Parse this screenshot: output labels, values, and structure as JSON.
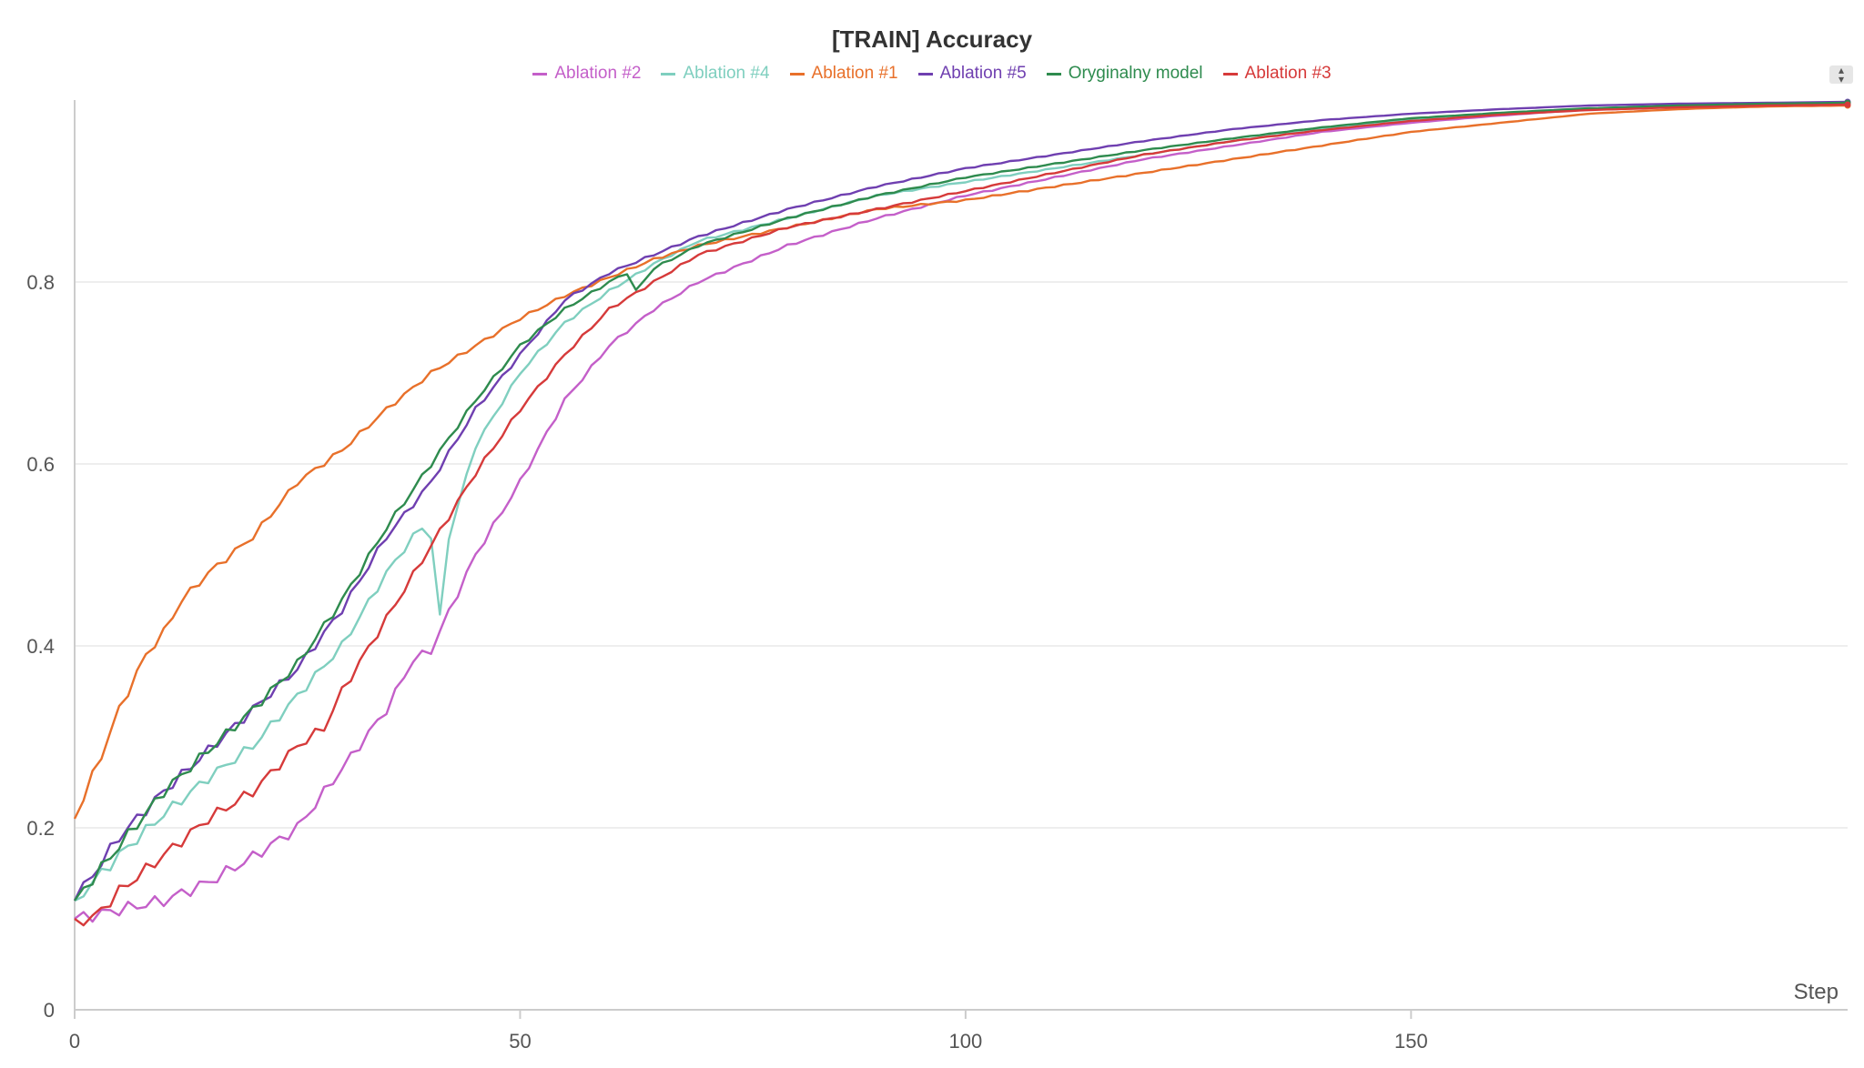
{
  "chart_data": {
    "type": "line",
    "title": "[TRAIN] Accuracy",
    "xlabel": "Step",
    "ylabel": "",
    "xlim": [
      0,
      199
    ],
    "ylim": [
      0,
      1.0
    ],
    "xticks": [
      0,
      50,
      100,
      150
    ],
    "yticks": [
      0,
      0.2,
      0.4,
      0.6,
      0.8
    ],
    "ytick_labels": [
      "0",
      "0.2",
      "0.4",
      "0.6",
      "0.8"
    ],
    "grid": true,
    "legend_position": "top-center",
    "series": [
      {
        "name": "Ablation #2",
        "color": "#c45fc9",
        "points": [
          [
            0,
            0.1
          ],
          [
            5,
            0.11
          ],
          [
            10,
            0.12
          ],
          [
            15,
            0.14
          ],
          [
            20,
            0.168
          ],
          [
            25,
            0.2
          ],
          [
            30,
            0.265
          ],
          [
            35,
            0.33
          ],
          [
            38,
            0.385
          ],
          [
            40,
            0.395
          ],
          [
            45,
            0.5
          ],
          [
            50,
            0.58
          ],
          [
            55,
            0.67
          ],
          [
            60,
            0.73
          ],
          [
            65,
            0.77
          ],
          [
            70,
            0.8
          ],
          [
            80,
            0.84
          ],
          [
            90,
            0.87
          ],
          [
            100,
            0.895
          ],
          [
            110,
            0.915
          ],
          [
            120,
            0.935
          ],
          [
            130,
            0.95
          ],
          [
            140,
            0.965
          ],
          [
            150,
            0.975
          ],
          [
            160,
            0.983
          ],
          [
            170,
            0.99
          ],
          [
            180,
            0.993
          ],
          [
            190,
            0.995
          ],
          [
            199,
            0.996
          ]
        ]
      },
      {
        "name": "Ablation #4",
        "color": "#7fcfbf",
        "points": [
          [
            0,
            0.12
          ],
          [
            5,
            0.17
          ],
          [
            10,
            0.215
          ],
          [
            15,
            0.255
          ],
          [
            20,
            0.29
          ],
          [
            25,
            0.345
          ],
          [
            30,
            0.4
          ],
          [
            35,
            0.48
          ],
          [
            38,
            0.52
          ],
          [
            39,
            0.53
          ],
          [
            40,
            0.52
          ],
          [
            41,
            0.43
          ],
          [
            42,
            0.52
          ],
          [
            45,
            0.62
          ],
          [
            50,
            0.7
          ],
          [
            55,
            0.755
          ],
          [
            60,
            0.79
          ],
          [
            65,
            0.82
          ],
          [
            70,
            0.845
          ],
          [
            80,
            0.87
          ],
          [
            90,
            0.895
          ],
          [
            100,
            0.91
          ],
          [
            110,
            0.925
          ],
          [
            120,
            0.94
          ],
          [
            130,
            0.955
          ],
          [
            140,
            0.968
          ],
          [
            150,
            0.978
          ],
          [
            160,
            0.985
          ],
          [
            170,
            0.99
          ],
          [
            180,
            0.993
          ],
          [
            190,
            0.995
          ],
          [
            199,
            0.996
          ]
        ]
      },
      {
        "name": "Ablation #1",
        "color": "#e8702a",
        "points": [
          [
            0,
            0.21
          ],
          [
            3,
            0.28
          ],
          [
            5,
            0.33
          ],
          [
            8,
            0.39
          ],
          [
            10,
            0.415
          ],
          [
            12,
            0.45
          ],
          [
            15,
            0.48
          ],
          [
            20,
            0.52
          ],
          [
            25,
            0.58
          ],
          [
            30,
            0.615
          ],
          [
            35,
            0.66
          ],
          [
            40,
            0.7
          ],
          [
            45,
            0.73
          ],
          [
            50,
            0.76
          ],
          [
            55,
            0.785
          ],
          [
            60,
            0.805
          ],
          [
            65,
            0.825
          ],
          [
            70,
            0.84
          ],
          [
            80,
            0.86
          ],
          [
            90,
            0.88
          ],
          [
            100,
            0.89
          ],
          [
            110,
            0.905
          ],
          [
            120,
            0.92
          ],
          [
            130,
            0.935
          ],
          [
            140,
            0.95
          ],
          [
            150,
            0.965
          ],
          [
            160,
            0.975
          ],
          [
            170,
            0.985
          ],
          [
            180,
            0.99
          ],
          [
            190,
            0.993
          ],
          [
            199,
            0.994
          ]
        ]
      },
      {
        "name": "Ablation #5",
        "color": "#6f3fb0",
        "points": [
          [
            0,
            0.12
          ],
          [
            5,
            0.19
          ],
          [
            10,
            0.24
          ],
          [
            15,
            0.285
          ],
          [
            20,
            0.33
          ],
          [
            25,
            0.375
          ],
          [
            30,
            0.44
          ],
          [
            35,
            0.52
          ],
          [
            40,
            0.58
          ],
          [
            45,
            0.66
          ],
          [
            50,
            0.72
          ],
          [
            55,
            0.78
          ],
          [
            60,
            0.81
          ],
          [
            65,
            0.83
          ],
          [
            70,
            0.85
          ],
          [
            80,
            0.88
          ],
          [
            90,
            0.905
          ],
          [
            100,
            0.925
          ],
          [
            110,
            0.94
          ],
          [
            120,
            0.955
          ],
          [
            130,
            0.968
          ],
          [
            140,
            0.978
          ],
          [
            150,
            0.985
          ],
          [
            160,
            0.99
          ],
          [
            170,
            0.994
          ],
          [
            180,
            0.996
          ],
          [
            190,
            0.997
          ],
          [
            199,
            0.998
          ]
        ]
      },
      {
        "name": "Oryginalny model",
        "color": "#2e8b4e",
        "points": [
          [
            0,
            0.12
          ],
          [
            5,
            0.18
          ],
          [
            10,
            0.24
          ],
          [
            15,
            0.285
          ],
          [
            20,
            0.33
          ],
          [
            25,
            0.38
          ],
          [
            30,
            0.45
          ],
          [
            35,
            0.53
          ],
          [
            40,
            0.6
          ],
          [
            45,
            0.67
          ],
          [
            50,
            0.73
          ],
          [
            55,
            0.77
          ],
          [
            60,
            0.8
          ],
          [
            62,
            0.81
          ],
          [
            63,
            0.79
          ],
          [
            65,
            0.815
          ],
          [
            70,
            0.84
          ],
          [
            80,
            0.87
          ],
          [
            90,
            0.895
          ],
          [
            100,
            0.915
          ],
          [
            110,
            0.93
          ],
          [
            120,
            0.945
          ],
          [
            130,
            0.958
          ],
          [
            140,
            0.97
          ],
          [
            150,
            0.98
          ],
          [
            160,
            0.986
          ],
          [
            170,
            0.991
          ],
          [
            180,
            0.994
          ],
          [
            190,
            0.996
          ],
          [
            199,
            0.997
          ]
        ]
      },
      {
        "name": "Ablation #3",
        "color": "#d63a3a",
        "points": [
          [
            0,
            0.1
          ],
          [
            2,
            0.1
          ],
          [
            5,
            0.13
          ],
          [
            10,
            0.17
          ],
          [
            15,
            0.21
          ],
          [
            20,
            0.24
          ],
          [
            25,
            0.29
          ],
          [
            28,
            0.31
          ],
          [
            30,
            0.35
          ],
          [
            35,
            0.43
          ],
          [
            40,
            0.51
          ],
          [
            45,
            0.59
          ],
          [
            50,
            0.66
          ],
          [
            55,
            0.72
          ],
          [
            60,
            0.77
          ],
          [
            65,
            0.8
          ],
          [
            70,
            0.83
          ],
          [
            80,
            0.86
          ],
          [
            90,
            0.88
          ],
          [
            100,
            0.9
          ],
          [
            110,
            0.92
          ],
          [
            120,
            0.94
          ],
          [
            130,
            0.955
          ],
          [
            140,
            0.967
          ],
          [
            150,
            0.977
          ],
          [
            160,
            0.984
          ],
          [
            170,
            0.989
          ],
          [
            180,
            0.992
          ],
          [
            190,
            0.994
          ],
          [
            199,
            0.995
          ]
        ]
      }
    ]
  }
}
